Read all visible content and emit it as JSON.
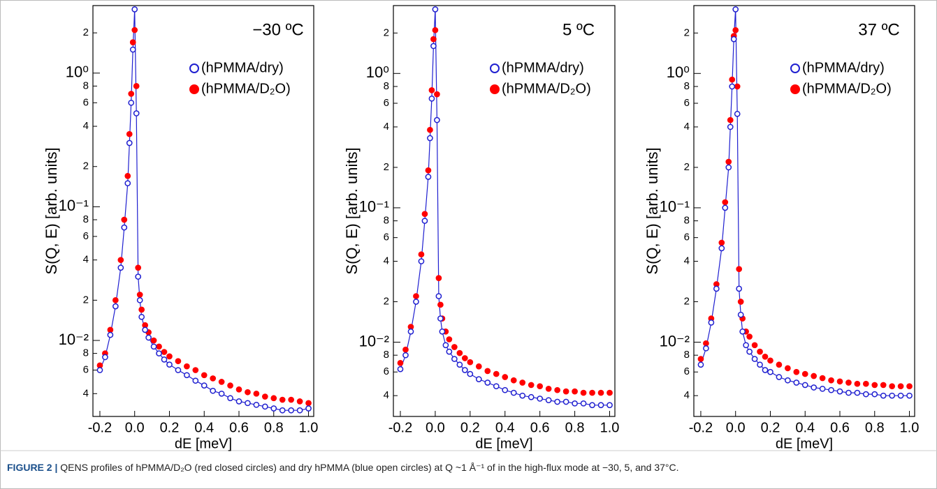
{
  "chart_data": [
    {
      "type": "scatter",
      "yscale": "log",
      "annotation": "−30 ºC",
      "xlabel": "dE [meV]",
      "ylabel": "S(Q, E) [arb. units]",
      "legend": "upper right",
      "xlim": [
        -0.24,
        1.03
      ],
      "ylim": [
        0.0027,
        3.2
      ],
      "xticks": [
        -0.2,
        {
          "value": 0,
          "label": "0.0"
        },
        0.2,
        0.4,
        0.6,
        0.8,
        {
          "value": 1,
          "label": "1.0"
        }
      ],
      "yticks": [
        2,
        {
          "value": 1,
          "label": "10⁰"
        },
        {
          "value": 0.8,
          "label": "8"
        },
        {
          "value": 0.6,
          "label": "6"
        },
        {
          "value": 0.4,
          "label": "4"
        },
        {
          "value": 0.2,
          "label": "2"
        },
        {
          "value": 0.1,
          "label": "10⁻¹"
        },
        {
          "value": 0.08,
          "label": "8"
        },
        {
          "value": 0.06,
          "label": "6"
        },
        {
          "value": 0.04,
          "label": "4"
        },
        {
          "value": 0.02,
          "label": "2"
        },
        {
          "value": 0.01,
          "label": "10⁻²"
        },
        {
          "value": 0.008,
          "label": "8"
        },
        {
          "value": 0.006,
          "label": "6"
        },
        {
          "value": 0.004,
          "label": "4"
        }
      ],
      "x": [
        -0.2,
        -0.17,
        -0.14,
        -0.11,
        -0.08,
        -0.06,
        -0.04,
        -0.03,
        -0.02,
        -0.01,
        0,
        0.01,
        0.02,
        0.03,
        0.04,
        0.06,
        0.08,
        0.11,
        0.14,
        0.17,
        0.2,
        0.25,
        0.3,
        0.35,
        0.4,
        0.45,
        0.5,
        0.55,
        0.6,
        0.65,
        0.7,
        0.75,
        0.8,
        0.85,
        0.9,
        0.95,
        1.0
      ],
      "series": [
        {
          "name": "(hPMMA/dry)",
          "color": "#1f1fd0",
          "marker": "open",
          "line": true,
          "values": [
            0.006,
            0.0075,
            0.011,
            0.018,
            0.035,
            0.07,
            0.15,
            0.3,
            0.6,
            1.5,
            3.0,
            0.5,
            0.03,
            0.02,
            0.015,
            0.012,
            0.0105,
            0.009,
            0.008,
            0.0072,
            0.0066,
            0.006,
            0.0055,
            0.005,
            0.0046,
            0.0042,
            0.004,
            0.0037,
            0.0035,
            0.0034,
            0.0033,
            0.0032,
            0.0031,
            0.003,
            0.003,
            0.003,
            0.0031
          ]
        },
        {
          "name": "(hPMMA/D₂O)",
          "color": "#ff0000",
          "marker": "filled",
          "line": false,
          "values": [
            0.0065,
            0.008,
            0.012,
            0.02,
            0.04,
            0.08,
            0.17,
            0.35,
            0.7,
            1.7,
            2.1,
            0.8,
            0.035,
            0.022,
            0.017,
            0.013,
            0.0115,
            0.01,
            0.009,
            0.0082,
            0.0076,
            0.007,
            0.0064,
            0.006,
            0.0055,
            0.0052,
            0.0049,
            0.0046,
            0.0043,
            0.0041,
            0.004,
            0.0038,
            0.0037,
            0.0036,
            0.0036,
            0.0035,
            0.0034
          ]
        }
      ]
    },
    {
      "type": "scatter",
      "yscale": "log",
      "annotation": "5 ºC",
      "xlabel": "dE [meV]",
      "ylabel": "S(Q, E) [arb. units]",
      "legend": "upper right",
      "xlim": [
        -0.24,
        1.03
      ],
      "ylim": [
        0.0028,
        3.2
      ],
      "xticks": [
        -0.2,
        {
          "value": 0,
          "label": "0.0"
        },
        0.2,
        0.4,
        0.6,
        0.8,
        {
          "value": 1,
          "label": "1.0"
        }
      ],
      "yticks": [
        2,
        {
          "value": 1,
          "label": "10⁰"
        },
        {
          "value": 0.8,
          "label": "8"
        },
        {
          "value": 0.6,
          "label": "6"
        },
        {
          "value": 0.4,
          "label": "4"
        },
        {
          "value": 0.2,
          "label": "2"
        },
        {
          "value": 0.1,
          "label": "10⁻¹"
        },
        {
          "value": 0.08,
          "label": "8"
        },
        {
          "value": 0.06,
          "label": "6"
        },
        {
          "value": 0.04,
          "label": "4"
        },
        {
          "value": 0.02,
          "label": "2"
        },
        {
          "value": 0.01,
          "label": "10⁻²"
        },
        {
          "value": 0.008,
          "label": "8"
        },
        {
          "value": 0.006,
          "label": "6"
        },
        {
          "value": 0.004,
          "label": "4"
        }
      ],
      "x": [
        -0.2,
        -0.17,
        -0.14,
        -0.11,
        -0.08,
        -0.06,
        -0.04,
        -0.03,
        -0.02,
        -0.01,
        0,
        0.01,
        0.02,
        0.03,
        0.04,
        0.06,
        0.08,
        0.11,
        0.14,
        0.17,
        0.2,
        0.25,
        0.3,
        0.35,
        0.4,
        0.45,
        0.5,
        0.55,
        0.6,
        0.65,
        0.7,
        0.75,
        0.8,
        0.85,
        0.9,
        0.95,
        1.0
      ],
      "series": [
        {
          "name": "(hPMMA/dry)",
          "color": "#1f1fd0",
          "marker": "open",
          "line": true,
          "values": [
            0.0063,
            0.008,
            0.012,
            0.02,
            0.04,
            0.08,
            0.17,
            0.33,
            0.65,
            1.6,
            3.0,
            0.45,
            0.022,
            0.015,
            0.012,
            0.0095,
            0.0085,
            0.0075,
            0.0068,
            0.0062,
            0.0058,
            0.0053,
            0.005,
            0.0047,
            0.0044,
            0.0042,
            0.004,
            0.0039,
            0.0038,
            0.0037,
            0.0036,
            0.0036,
            0.0035,
            0.0035,
            0.0034,
            0.0034,
            0.0034
          ]
        },
        {
          "name": "(hPMMA/D₂O)",
          "color": "#ff0000",
          "marker": "filled",
          "line": false,
          "values": [
            0.007,
            0.0088,
            0.013,
            0.022,
            0.045,
            0.09,
            0.19,
            0.38,
            0.75,
            1.8,
            2.1,
            0.7,
            0.03,
            0.019,
            0.015,
            0.012,
            0.0105,
            0.0092,
            0.0083,
            0.0076,
            0.0071,
            0.0066,
            0.0061,
            0.0058,
            0.0055,
            0.0052,
            0.005,
            0.0048,
            0.0047,
            0.0045,
            0.0044,
            0.0043,
            0.0043,
            0.0042,
            0.0042,
            0.0042,
            0.0042
          ]
        }
      ]
    },
    {
      "type": "scatter",
      "yscale": "log",
      "annotation": "37 ºC",
      "xlabel": "dE [meV]",
      "ylabel": "S(Q, E) [arb. units]",
      "legend": "upper right",
      "xlim": [
        -0.24,
        1.03
      ],
      "ylim": [
        0.0028,
        3.2
      ],
      "xticks": [
        -0.2,
        {
          "value": 0,
          "label": "0.0"
        },
        0.2,
        0.4,
        0.6,
        0.8,
        {
          "value": 1,
          "label": "1.0"
        }
      ],
      "yticks": [
        2,
        {
          "value": 1,
          "label": "10⁰"
        },
        {
          "value": 0.8,
          "label": "8"
        },
        {
          "value": 0.6,
          "label": "6"
        },
        {
          "value": 0.4,
          "label": "4"
        },
        {
          "value": 0.2,
          "label": "2"
        },
        {
          "value": 0.1,
          "label": "10⁻¹"
        },
        {
          "value": 0.08,
          "label": "8"
        },
        {
          "value": 0.06,
          "label": "6"
        },
        {
          "value": 0.04,
          "label": "4"
        },
        {
          "value": 0.02,
          "label": "2"
        },
        {
          "value": 0.01,
          "label": "10⁻²"
        },
        {
          "value": 0.008,
          "label": "8"
        },
        {
          "value": 0.006,
          "label": "6"
        },
        {
          "value": 0.004,
          "label": "4"
        }
      ],
      "x": [
        -0.2,
        -0.17,
        -0.14,
        -0.11,
        -0.08,
        -0.06,
        -0.04,
        -0.03,
        -0.02,
        -0.01,
        0,
        0.01,
        0.02,
        0.03,
        0.04,
        0.06,
        0.08,
        0.11,
        0.14,
        0.17,
        0.2,
        0.25,
        0.3,
        0.35,
        0.4,
        0.45,
        0.5,
        0.55,
        0.6,
        0.65,
        0.7,
        0.75,
        0.8,
        0.85,
        0.9,
        0.95,
        1.0
      ],
      "series": [
        {
          "name": "(hPMMA/dry)",
          "color": "#1f1fd0",
          "marker": "open",
          "line": true,
          "values": [
            0.0068,
            0.009,
            0.014,
            0.025,
            0.05,
            0.1,
            0.2,
            0.4,
            0.8,
            1.8,
            3.0,
            0.5,
            0.025,
            0.016,
            0.012,
            0.0095,
            0.0085,
            0.0075,
            0.0068,
            0.0062,
            0.006,
            0.0055,
            0.0052,
            0.005,
            0.0048,
            0.0046,
            0.0045,
            0.0044,
            0.0043,
            0.0042,
            0.0042,
            0.0041,
            0.0041,
            0.004,
            0.004,
            0.004,
            0.004
          ]
        },
        {
          "name": "(hPMMA/D₂O)",
          "color": "#ff0000",
          "marker": "filled",
          "line": false,
          "values": [
            0.0075,
            0.0098,
            0.015,
            0.027,
            0.055,
            0.11,
            0.22,
            0.45,
            0.9,
            1.9,
            2.1,
            0.8,
            0.035,
            0.02,
            0.015,
            0.012,
            0.011,
            0.0095,
            0.0085,
            0.0078,
            0.0073,
            0.0068,
            0.0064,
            0.006,
            0.0058,
            0.0056,
            0.0054,
            0.0052,
            0.0051,
            0.005,
            0.0049,
            0.0049,
            0.0048,
            0.0048,
            0.0047,
            0.0047,
            0.0047
          ]
        }
      ]
    }
  ],
  "caption": {
    "label": "FIGURE 2 |",
    "text": "QENS profiles of hPMMA/D₂O (red closed circles) and dry hPMMA (blue open circles) at Q ~1 Å⁻¹ of in the high-flux mode at −30, 5, and 37°C."
  }
}
